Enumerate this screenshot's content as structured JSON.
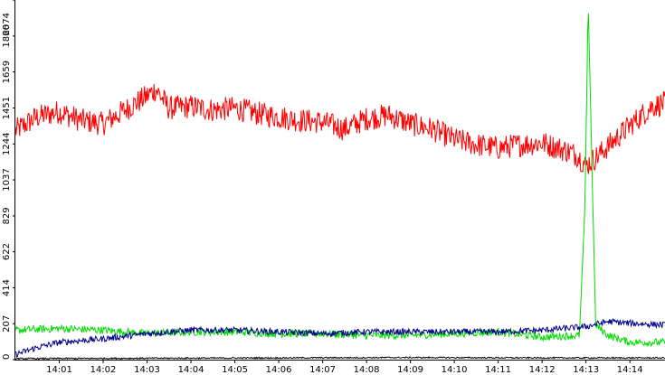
{
  "chart_data": {
    "type": "line",
    "title": "",
    "xlabel": "",
    "ylabel": "",
    "ylim": [
      0,
      2074
    ],
    "xlim": [
      0,
      14.8
    ],
    "y_ticks": [
      0,
      207,
      414,
      622,
      829,
      1037,
      1244,
      1451,
      1659,
      1866,
      2074
    ],
    "y_tick_labels": [
      "0",
      "207",
      "414",
      "622",
      "829",
      "1037",
      "1244",
      "1451",
      "1659",
      "1866",
      "2074"
    ],
    "x_ticks": [
      1,
      2,
      3,
      4,
      5,
      6,
      7,
      8,
      9,
      10,
      11,
      12,
      13,
      14
    ],
    "x_tick_labels": [
      "14:01",
      "14:02",
      "14:03",
      "14:04",
      "14:05",
      "14:06",
      "14:07",
      "14:08",
      "14:09",
      "14:10",
      "14:11",
      "14:12",
      "14:13",
      "14:14"
    ],
    "grid": false,
    "legend": "none",
    "series": [
      {
        "color": "#ff0000",
        "points": [
          [
            0,
            1320
          ],
          [
            0.5,
            1400
          ],
          [
            1,
            1430
          ],
          [
            1.5,
            1380
          ],
          [
            2,
            1360
          ],
          [
            2.5,
            1440
          ],
          [
            3,
            1520
          ],
          [
            3.2,
            1560
          ],
          [
            3.5,
            1450
          ],
          [
            4,
            1460
          ],
          [
            4.5,
            1440
          ],
          [
            5,
            1450
          ],
          [
            5.5,
            1420
          ],
          [
            6,
            1400
          ],
          [
            6.5,
            1380
          ],
          [
            7,
            1370
          ],
          [
            7.5,
            1330
          ],
          [
            8,
            1390
          ],
          [
            8.5,
            1410
          ],
          [
            9,
            1360
          ],
          [
            9.5,
            1330
          ],
          [
            10,
            1270
          ],
          [
            10.5,
            1240
          ],
          [
            11,
            1220
          ],
          [
            11.5,
            1240
          ],
          [
            12,
            1250
          ],
          [
            12.5,
            1210
          ],
          [
            12.8,
            1180
          ],
          [
            13,
            1120
          ],
          [
            13.2,
            1160
          ],
          [
            13.5,
            1230
          ],
          [
            14,
            1350
          ],
          [
            14.5,
            1460
          ],
          [
            14.8,
            1480
          ]
        ],
        "noise": 70
      },
      {
        "color": "#00dd00",
        "points": [
          [
            0,
            170
          ],
          [
            1,
            180
          ],
          [
            2,
            170
          ],
          [
            3,
            150
          ],
          [
            4,
            160
          ],
          [
            5,
            160
          ],
          [
            6,
            150
          ],
          [
            7,
            150
          ],
          [
            8,
            140
          ],
          [
            9,
            140
          ],
          [
            10,
            150
          ],
          [
            11,
            160
          ],
          [
            12,
            130
          ],
          [
            12.85,
            140
          ],
          [
            12.98,
            900
          ],
          [
            13.05,
            2074
          ],
          [
            13.12,
            1300
          ],
          [
            13.22,
            200
          ],
          [
            13.5,
            140
          ],
          [
            14,
            100
          ],
          [
            14.8,
            100
          ]
        ],
        "noise": 22
      },
      {
        "color": "#00008b",
        "points": [
          [
            0,
            30
          ],
          [
            0.5,
            70
          ],
          [
            1,
            100
          ],
          [
            2,
            120
          ],
          [
            3,
            150
          ],
          [
            4,
            170
          ],
          [
            5,
            170
          ],
          [
            6,
            160
          ],
          [
            7,
            150
          ],
          [
            8,
            160
          ],
          [
            9,
            160
          ],
          [
            10,
            160
          ],
          [
            11,
            160
          ],
          [
            12,
            170
          ],
          [
            13,
            190
          ],
          [
            13.5,
            220
          ],
          [
            14,
            210
          ],
          [
            14.8,
            200
          ]
        ],
        "noise": 18
      },
      {
        "color": "#000000",
        "points": [
          [
            0,
            6
          ],
          [
            3,
            8
          ],
          [
            6,
            10
          ],
          [
            9,
            12
          ],
          [
            12,
            10
          ],
          [
            14.8,
            10
          ]
        ],
        "noise": 4
      }
    ]
  }
}
